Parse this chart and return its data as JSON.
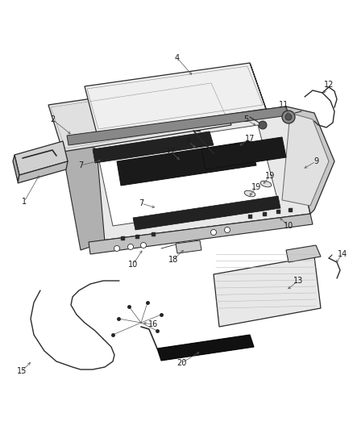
{
  "bg_color": "#ffffff",
  "line_color": "#2a2a2a",
  "label_color": "#1a1a1a",
  "figsize": [
    4.38,
    5.33
  ],
  "dpi": 100,
  "glass1_color": "#e8e8e8",
  "glass2_color": "#d8d8d8",
  "frame_color": "#c0c0c0",
  "dark_color": "#3a3a3a",
  "shade_color": "#e0e0e0"
}
